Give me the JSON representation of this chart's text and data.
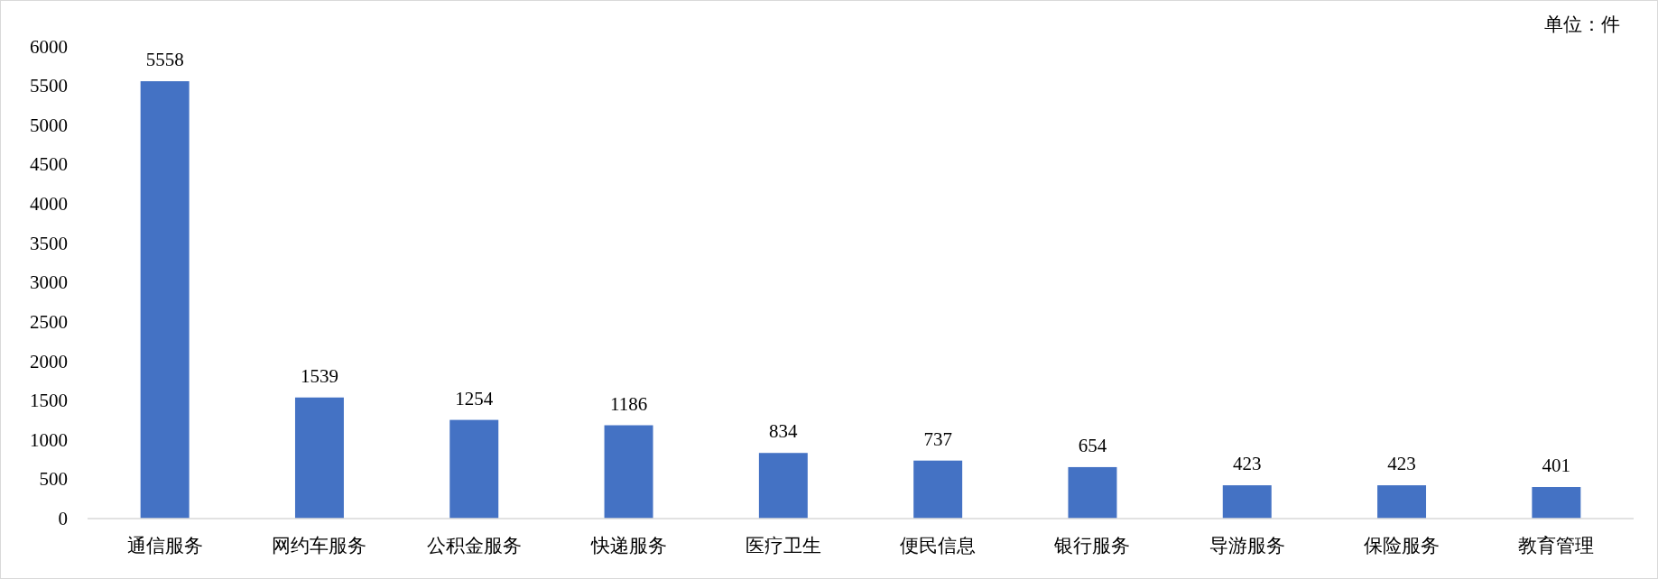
{
  "chart_data": {
    "type": "bar",
    "categories": [
      "通信服务",
      "网约车服务",
      "公积金服务",
      "快递服务",
      "医疗卫生",
      "便民信息",
      "银行服务",
      "导游服务",
      "保险服务",
      "教育管理"
    ],
    "values": [
      5558,
      1539,
      1254,
      1186,
      834,
      737,
      654,
      423,
      423,
      401
    ],
    "color": "#4472c4",
    "ylim": [
      0,
      6000
    ],
    "yticks": [
      0,
      500,
      1000,
      1500,
      2000,
      2500,
      3000,
      3500,
      4000,
      4500,
      5000,
      5500,
      6000
    ],
    "data_labels": true,
    "grid": false,
    "annotations": [
      "单位：件"
    ]
  }
}
